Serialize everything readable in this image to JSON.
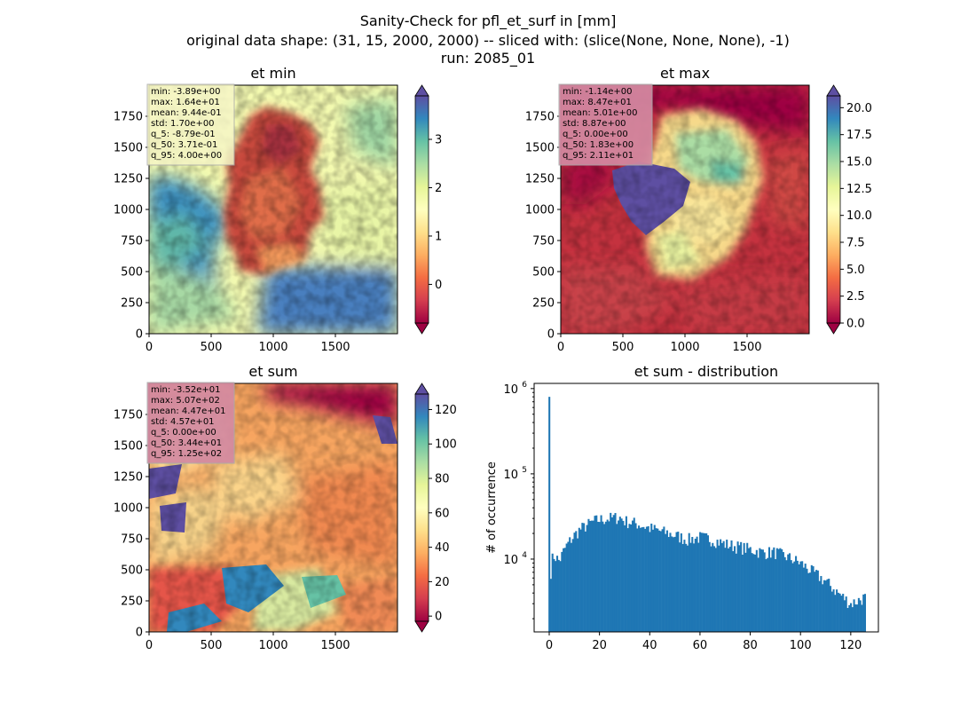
{
  "figure": {
    "title_lines": [
      "Sanity-Check for pfl_et_surf in [mm]",
      "original data shape: (31, 15, 2000, 2000) -- sliced with: (slice(None, None, None), -1)",
      "run: 2085_01"
    ]
  },
  "chart_data": [
    {
      "type": "heatmap",
      "title": "et min",
      "xlim": [
        0,
        2000
      ],
      "ylim": [
        0,
        2000
      ],
      "xticks": [
        "0",
        "500",
        "1000",
        "1500"
      ],
      "yticks": [
        "0",
        "250",
        "500",
        "750",
        "1000",
        "1250",
        "1500",
        "1750"
      ],
      "colorbar": {
        "min": -0.8,
        "max": 3.9,
        "ticks": [
          0,
          1,
          2,
          3
        ],
        "tick_labels": [
          "0",
          "1",
          "2",
          "3"
        ],
        "extend": "both",
        "cmap": "Spectral"
      },
      "stats": [
        "min: -3.89e+00",
        "max: 1.64e+01",
        "mean: 9.44e-01",
        "std: 1.70e+00",
        "q_5: -8.79e-01",
        "q_50: 3.71e-01",
        "q_95: 4.00e+00"
      ],
      "stats_box_color": "#f7f5c8"
    },
    {
      "type": "heatmap",
      "title": "et max",
      "xlim": [
        0,
        2000
      ],
      "ylim": [
        0,
        2000
      ],
      "xticks": [
        "0",
        "500",
        "1000",
        "1500"
      ],
      "yticks": [
        "0",
        "250",
        "500",
        "750",
        "1000",
        "1250",
        "1500",
        "1750"
      ],
      "colorbar": {
        "min": 0,
        "max": 21.1,
        "ticks": [
          0,
          2.5,
          5,
          7.5,
          10,
          12.5,
          15,
          17.5,
          20
        ],
        "tick_labels": [
          "0.0",
          "2.5",
          "5.0",
          "7.5",
          "10.0",
          "12.5",
          "15.0",
          "17.5",
          "20.0"
        ],
        "extend": "both",
        "cmap": "Spectral"
      },
      "stats": [
        "min: -1.14e+00",
        "max: 8.47e+01",
        "mean: 5.01e+00",
        "std: 8.87e+00",
        "q_5: 0.00e+00",
        "q_50: 1.83e+00",
        "q_95: 2.11e+01"
      ],
      "stats_box_color": "#d4869e"
    },
    {
      "type": "heatmap",
      "title": "et sum",
      "xlim": [
        0,
        2000
      ],
      "ylim": [
        0,
        2000
      ],
      "xticks": [
        "0",
        "500",
        "1000",
        "1500"
      ],
      "yticks": [
        "0",
        "250",
        "500",
        "750",
        "1000",
        "1250",
        "1500",
        "1750"
      ],
      "colorbar": {
        "min": -3,
        "max": 129,
        "ticks": [
          0,
          20,
          40,
          60,
          80,
          100,
          120
        ],
        "tick_labels": [
          "0",
          "20",
          "40",
          "60",
          "80",
          "100",
          "120"
        ],
        "extend": "both",
        "cmap": "Spectral"
      },
      "stats": [
        "min: -3.52e+01",
        "max: 5.07e+02",
        "mean: 4.47e+01",
        "std: 4.57e+01",
        "q_5: 0.00e+00",
        "q_50: 3.44e+01",
        "q_95: 1.25e+02"
      ],
      "stats_box_color": "#d4869e"
    },
    {
      "type": "bar",
      "title": "et sum - distribution",
      "ylabel": "# of occurrence",
      "xlabel": "",
      "xlim": [
        -6,
        131
      ],
      "xticks": [
        0,
        20,
        40,
        60,
        80,
        100,
        120
      ],
      "yscale": "log",
      "ylim": [
        1400,
        1150000
      ],
      "yticks": [
        10000,
        100000,
        1000000
      ],
      "ytick_labels": [
        {
          "base": "10",
          "exp": "4"
        },
        {
          "base": "10",
          "exp": "5"
        },
        {
          "base": "10",
          "exp": "6"
        }
      ],
      "bar_color": "#1f77b4",
      "bin_width": 0.625,
      "bin_start": -0.3,
      "counts_anchor": [
        [
          0,
          800000
        ],
        [
          0.6,
          7000
        ],
        [
          1.2,
          10000
        ],
        [
          2,
          11000
        ],
        [
          4,
          9500
        ],
        [
          6,
          13000
        ],
        [
          8,
          16000
        ],
        [
          10,
          19000
        ],
        [
          12,
          22000
        ],
        [
          14,
          24000
        ],
        [
          16,
          26000
        ],
        [
          18,
          28000
        ],
        [
          20,
          29000
        ],
        [
          24,
          30000
        ],
        [
          28,
          31000
        ],
        [
          30,
          28000
        ],
        [
          35,
          26000
        ],
        [
          40,
          23000
        ],
        [
          45,
          21000
        ],
        [
          50,
          19000
        ],
        [
          55,
          17000
        ],
        [
          60,
          18000
        ],
        [
          65,
          17000
        ],
        [
          70,
          15000
        ],
        [
          75,
          14000
        ],
        [
          80,
          13000
        ],
        [
          85,
          12000
        ],
        [
          90,
          12000
        ],
        [
          95,
          10500
        ],
        [
          100,
          9000
        ],
        [
          105,
          7000
        ],
        [
          110,
          5500
        ],
        [
          115,
          4000
        ],
        [
          120,
          3000
        ],
        [
          125,
          3500
        ]
      ]
    }
  ]
}
